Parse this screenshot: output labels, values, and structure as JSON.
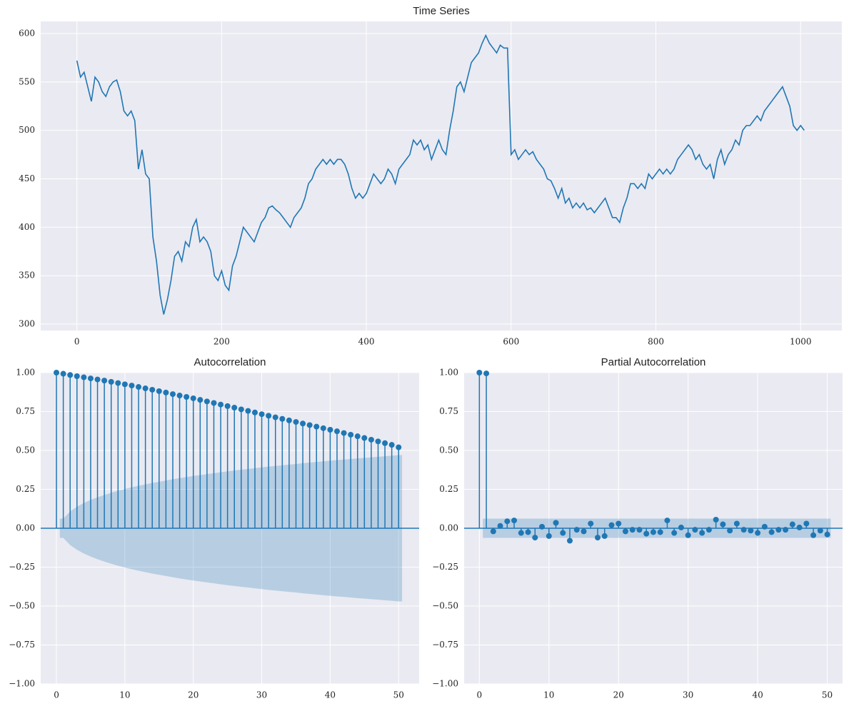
{
  "chart_data": [
    {
      "type": "line",
      "title": "Time Series",
      "color": "#1f77b4",
      "grid": true,
      "x": [
        0,
        5,
        10,
        15,
        20,
        25,
        30,
        35,
        40,
        45,
        50,
        55,
        60,
        65,
        70,
        75,
        80,
        85,
        90,
        95,
        100,
        105,
        110,
        115,
        120,
        125,
        130,
        135,
        140,
        145,
        150,
        155,
        160,
        165,
        170,
        175,
        180,
        185,
        190,
        195,
        200,
        205,
        210,
        215,
        220,
        225,
        230,
        235,
        240,
        245,
        250,
        255,
        260,
        265,
        270,
        275,
        280,
        285,
        290,
        295,
        300,
        305,
        310,
        315,
        320,
        325,
        330,
        335,
        340,
        345,
        350,
        355,
        360,
        365,
        370,
        375,
        380,
        385,
        390,
        395,
        400,
        405,
        410,
        415,
        420,
        425,
        430,
        435,
        440,
        445,
        450,
        455,
        460,
        465,
        470,
        475,
        480,
        485,
        490,
        495,
        500,
        505,
        510,
        515,
        520,
        525,
        530,
        535,
        540,
        545,
        550,
        555,
        560,
        565,
        570,
        575,
        580,
        585,
        590,
        595,
        600,
        605,
        610,
        615,
        620,
        625,
        630,
        635,
        640,
        645,
        650,
        655,
        660,
        665,
        670,
        675,
        680,
        685,
        690,
        695,
        700,
        705,
        710,
        715,
        720,
        725,
        730,
        735,
        740,
        745,
        750,
        755,
        760,
        765,
        770,
        775,
        780,
        785,
        790,
        795,
        800,
        805,
        810,
        815,
        820,
        825,
        830,
        835,
        840,
        845,
        850,
        855,
        860,
        865,
        870,
        875,
        880,
        885,
        890,
        895,
        900,
        905,
        910,
        915,
        920,
        925,
        930,
        935,
        940,
        945,
        950,
        955,
        960,
        965,
        970,
        975,
        980,
        985,
        990,
        995,
        1000,
        1005
      ],
      "values": [
        572,
        555,
        560,
        545,
        530,
        555,
        550,
        540,
        535,
        545,
        550,
        552,
        540,
        520,
        515,
        520,
        510,
        460,
        480,
        455,
        450,
        390,
        365,
        330,
        310,
        325,
        345,
        370,
        375,
        365,
        385,
        380,
        400,
        408,
        385,
        390,
        385,
        375,
        350,
        345,
        355,
        340,
        335,
        360,
        370,
        385,
        400,
        395,
        390,
        385,
        395,
        405,
        410,
        420,
        422,
        418,
        415,
        410,
        405,
        400,
        410,
        415,
        420,
        430,
        445,
        450,
        460,
        465,
        470,
        465,
        470,
        465,
        470,
        470,
        465,
        455,
        440,
        430,
        435,
        430,
        435,
        445,
        455,
        450,
        445,
        450,
        460,
        455,
        445,
        460,
        465,
        470,
        475,
        490,
        485,
        490,
        480,
        485,
        470,
        480,
        490,
        480,
        475,
        500,
        520,
        545,
        550,
        540,
        555,
        570,
        575,
        580,
        590,
        598,
        590,
        585,
        580,
        588,
        585,
        585,
        475,
        480,
        470,
        475,
        480,
        475,
        478,
        470,
        465,
        460,
        450,
        448,
        440,
        430,
        440,
        425,
        430,
        420,
        425,
        420,
        425,
        418,
        420,
        415,
        420,
        425,
        430,
        420,
        410,
        410,
        405,
        420,
        430,
        445,
        445,
        440,
        445,
        440,
        455,
        450,
        455,
        460,
        455,
        460,
        455,
        460,
        470,
        475,
        480,
        485,
        480,
        470,
        475,
        465,
        460,
        465,
        450,
        470,
        480,
        465,
        475,
        480,
        490,
        485,
        500,
        505,
        505,
        510,
        515,
        510,
        520,
        525,
        530,
        535,
        540,
        545,
        535,
        525,
        505,
        500,
        505,
        500
      ],
      "xlim": [
        -50,
        1057
      ],
      "ylim": [
        293.4,
        612.5
      ],
      "xticks": [
        0,
        200,
        400,
        600,
        800,
        1000
      ],
      "yticks": [
        300,
        350,
        400,
        450,
        500,
        550,
        600
      ]
    },
    {
      "type": "stem",
      "title": "Autocorrelation",
      "color": "#1f77b4",
      "grid": true,
      "x": [
        0,
        1,
        2,
        3,
        4,
        5,
        6,
        7,
        8,
        9,
        10,
        11,
        12,
        13,
        14,
        15,
        16,
        17,
        18,
        19,
        20,
        21,
        22,
        23,
        24,
        25,
        26,
        27,
        28,
        29,
        30,
        31,
        32,
        33,
        34,
        35,
        36,
        37,
        38,
        39,
        40,
        41,
        42,
        43,
        44,
        45,
        46,
        47,
        48,
        49,
        50
      ],
      "values": [
        1.0,
        0.993,
        0.985,
        0.977,
        0.97,
        0.963,
        0.956,
        0.949,
        0.941,
        0.933,
        0.925,
        0.917,
        0.908,
        0.899,
        0.89,
        0.881,
        0.872,
        0.862,
        0.853,
        0.844,
        0.835,
        0.825,
        0.815,
        0.805,
        0.795,
        0.785,
        0.775,
        0.764,
        0.754,
        0.744,
        0.733,
        0.723,
        0.713,
        0.703,
        0.693,
        0.683,
        0.673,
        0.663,
        0.653,
        0.643,
        0.633,
        0.623,
        0.612,
        0.601,
        0.591,
        0.58,
        0.569,
        0.558,
        0.547,
        0.536,
        0.52
      ],
      "band": [
        null,
        0.062,
        0.108,
        0.138,
        0.162,
        0.182,
        0.199,
        0.214,
        0.228,
        0.241,
        0.252,
        0.263,
        0.273,
        0.282,
        0.291,
        0.299,
        0.307,
        0.315,
        0.322,
        0.329,
        0.336,
        0.342,
        0.348,
        0.354,
        0.36,
        0.366,
        0.371,
        0.376,
        0.381,
        0.386,
        0.391,
        0.396,
        0.4,
        0.405,
        0.409,
        0.413,
        0.418,
        0.422,
        0.426,
        0.43,
        0.434,
        0.438,
        0.441,
        0.445,
        0.449,
        0.452,
        0.456,
        0.459,
        0.463,
        0.466,
        0.47
      ],
      "xlim": [
        -2.3,
        53.0
      ],
      "ylim": [
        -1,
        1
      ],
      "xticks": [
        0,
        10,
        20,
        30,
        40,
        50
      ],
      "yticks": [
        {
          "value": -1,
          "label": "−1.00"
        },
        {
          "value": -0.75,
          "label": "−0.75"
        },
        {
          "value": -0.5,
          "label": "−0.50"
        },
        {
          "value": -0.25,
          "label": "−0.25"
        },
        {
          "value": 0,
          "label": "0.00"
        },
        {
          "value": 0.25,
          "label": "0.25"
        },
        {
          "value": 0.5,
          "label": "0.50"
        },
        {
          "value": 0.75,
          "label": "0.75"
        },
        {
          "value": 1,
          "label": "1.00"
        }
      ]
    },
    {
      "type": "stem",
      "title": "Partial Autocorrelation",
      "color": "#1f77b4",
      "grid": true,
      "x": [
        0,
        1,
        2,
        3,
        4,
        5,
        6,
        7,
        8,
        9,
        10,
        11,
        12,
        13,
        14,
        15,
        16,
        17,
        18,
        19,
        20,
        21,
        22,
        23,
        24,
        25,
        26,
        27,
        28,
        29,
        30,
        31,
        32,
        33,
        34,
        35,
        36,
        37,
        38,
        39,
        40,
        41,
        42,
        43,
        44,
        45,
        46,
        47,
        48,
        49,
        50
      ],
      "values": [
        1.0,
        0.995,
        -0.02,
        0.015,
        0.045,
        0.05,
        -0.03,
        -0.025,
        -0.06,
        0.01,
        -0.05,
        0.035,
        -0.03,
        -0.08,
        -0.01,
        -0.02,
        0.03,
        -0.06,
        -0.05,
        0.02,
        0.03,
        -0.02,
        -0.01,
        -0.01,
        -0.035,
        -0.025,
        -0.025,
        0.05,
        -0.03,
        0.005,
        -0.045,
        -0.01,
        -0.03,
        -0.01,
        0.055,
        0.025,
        -0.015,
        0.03,
        -0.01,
        -0.015,
        -0.03,
        0.01,
        -0.025,
        -0.01,
        -0.01,
        0.025,
        0.005,
        0.03,
        -0.045,
        -0.015,
        -0.04
      ],
      "band": [
        null,
        0.062,
        0.062,
        0.062,
        0.062,
        0.062,
        0.062,
        0.062,
        0.062,
        0.062,
        0.062,
        0.062,
        0.062,
        0.062,
        0.062,
        0.062,
        0.062,
        0.062,
        0.062,
        0.062,
        0.062,
        0.062,
        0.062,
        0.062,
        0.062,
        0.062,
        0.062,
        0.062,
        0.062,
        0.062,
        0.062,
        0.062,
        0.062,
        0.062,
        0.062,
        0.062,
        0.062,
        0.062,
        0.062,
        0.062,
        0.062,
        0.062,
        0.062,
        0.062,
        0.062,
        0.062,
        0.062,
        0.062,
        0.062,
        0.062,
        0.062
      ],
      "xlim": [
        -2.19,
        52.2
      ],
      "ylim": [
        -1,
        1
      ],
      "xticks": [
        0,
        10,
        20,
        30,
        40,
        50
      ],
      "yticks": [
        {
          "value": -1,
          "label": "−1.00"
        },
        {
          "value": -0.75,
          "label": "−0.75"
        },
        {
          "value": -0.5,
          "label": "−0.50"
        },
        {
          "value": -0.25,
          "label": "−0.25"
        },
        {
          "value": 0,
          "label": "0.00"
        },
        {
          "value": 0.25,
          "label": "0.25"
        },
        {
          "value": 0.5,
          "label": "0.50"
        },
        {
          "value": 0.75,
          "label": "0.75"
        },
        {
          "value": 1,
          "label": "1.00"
        }
      ]
    }
  ]
}
